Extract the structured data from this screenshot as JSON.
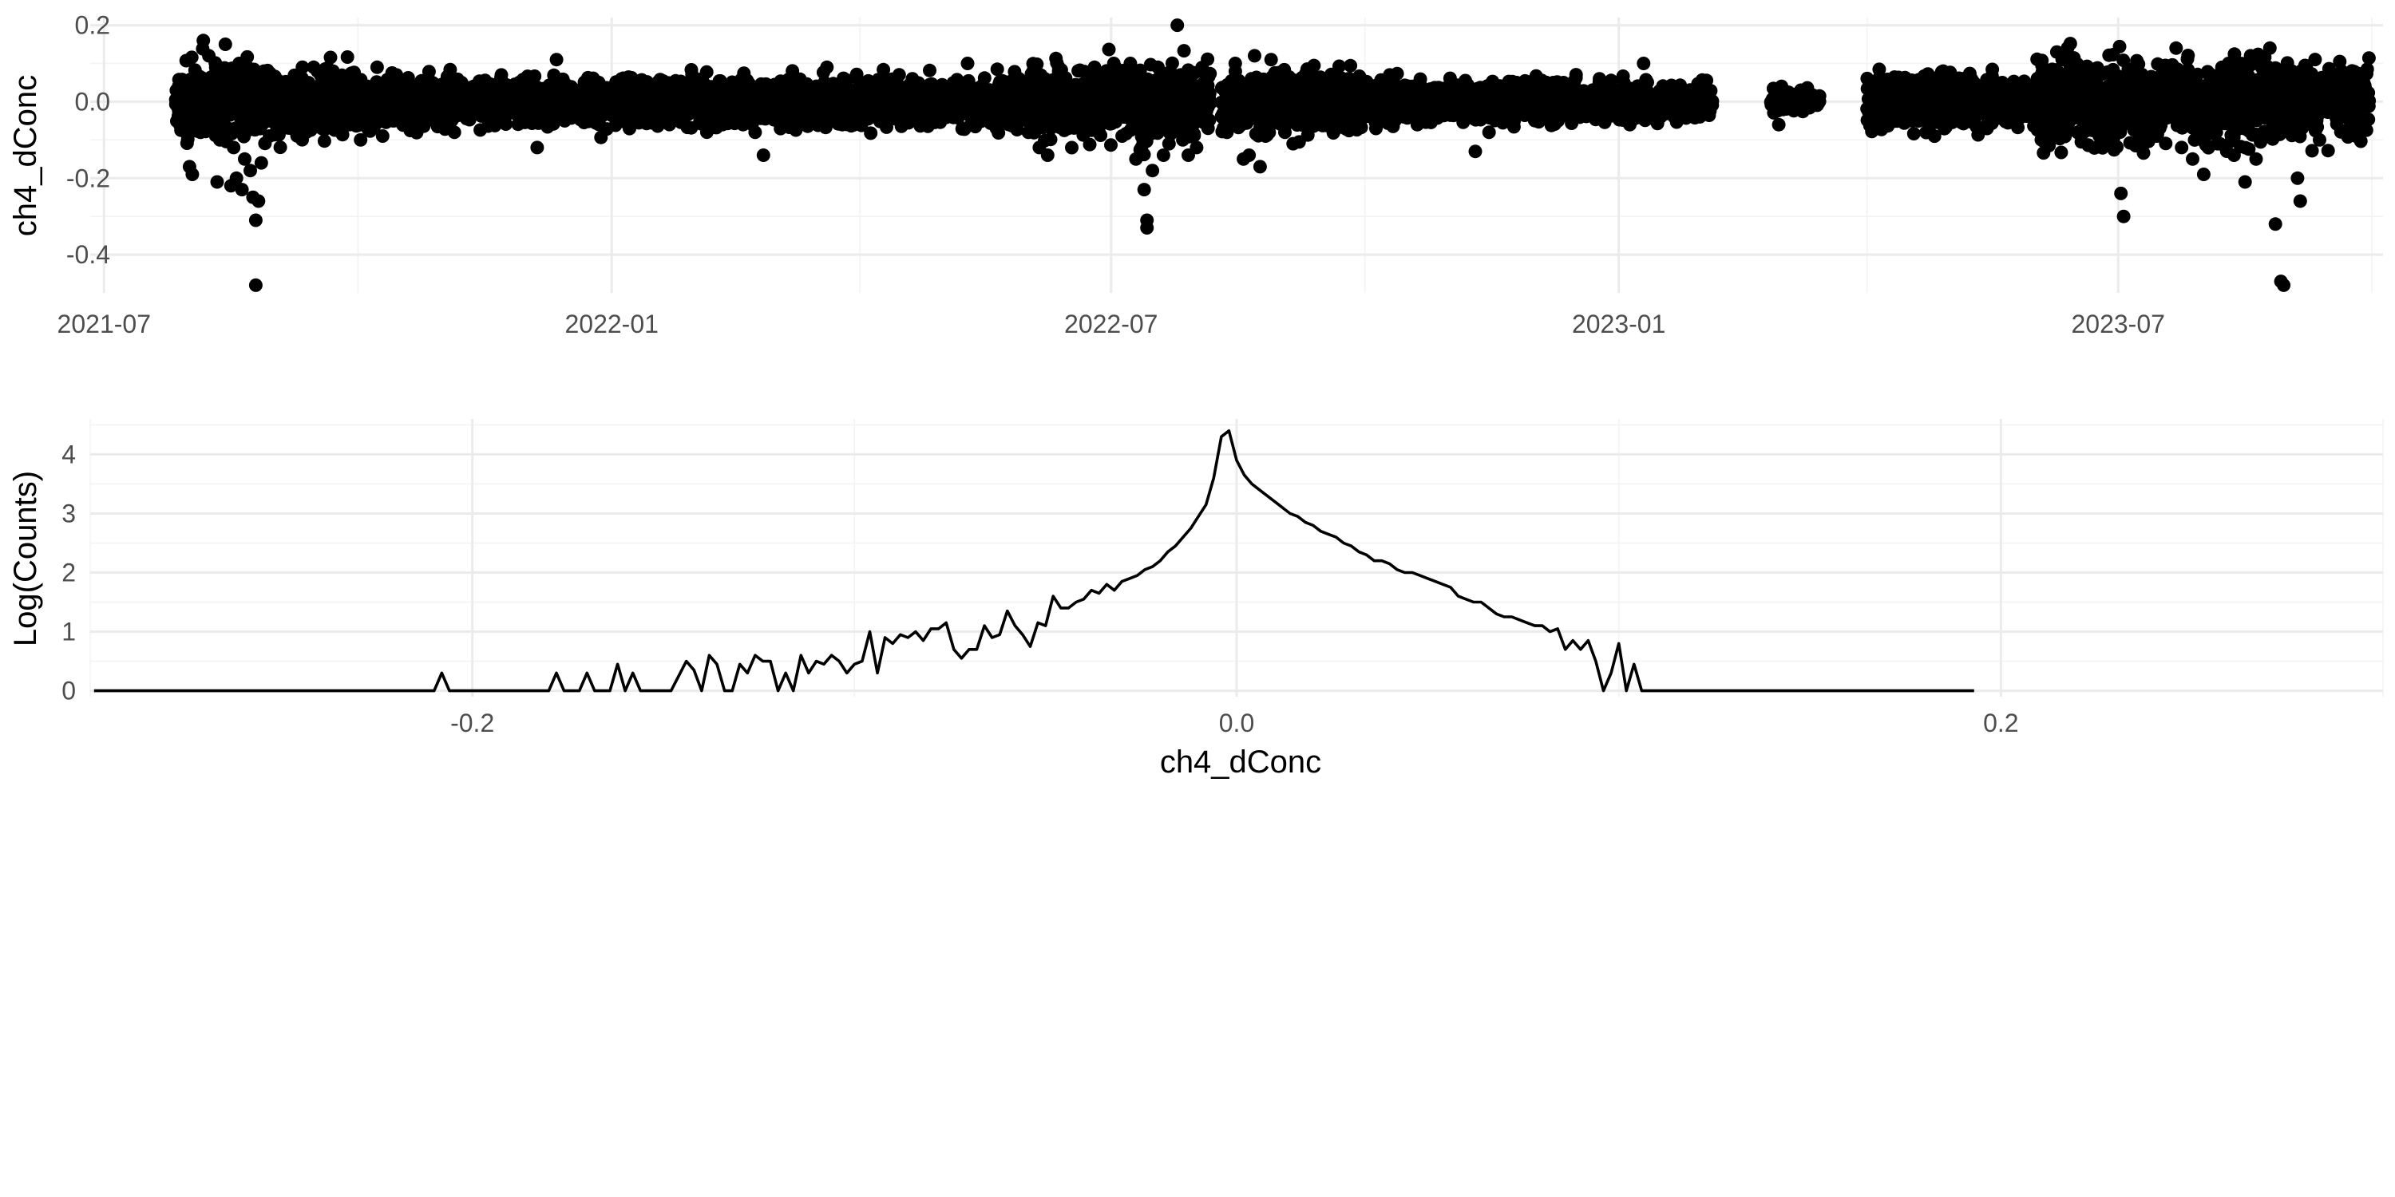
{
  "colors": {
    "marks": "#000000",
    "grid_major": "#ebebeb",
    "grid_minor": "#f3f3f3",
    "tick_text": "#4d4d4d"
  },
  "chart_data": [
    {
      "type": "scatter",
      "xlabel": "",
      "ylabel": "ch4_dConc",
      "x_type": "date",
      "xlim": [
        "2021-06-26",
        "2023-10-05"
      ],
      "ylim": [
        -0.5,
        0.22
      ],
      "x_ticks": [
        {
          "value": "2021-07-01",
          "label": "2021-07"
        },
        {
          "value": "2022-01-01",
          "label": "2022-01"
        },
        {
          "value": "2022-07-01",
          "label": "2022-07"
        },
        {
          "value": "2023-01-01",
          "label": "2023-01"
        },
        {
          "value": "2023-07-01",
          "label": "2023-07"
        }
      ],
      "y_ticks": [
        {
          "value": 0.2,
          "label": "0.2"
        },
        {
          "value": 0.0,
          "label": "0.0"
        },
        {
          "value": -0.2,
          "label": "-0.2"
        },
        {
          "value": -0.4,
          "label": "-0.4"
        }
      ],
      "grid": true,
      "activity_periods": [
        {
          "start": "2021-07-27",
          "end": "2022-08-06",
          "spread": 0.03
        },
        {
          "start": "2022-08-10",
          "end": "2023-02-04",
          "spread": 0.025
        },
        {
          "start": "2023-02-25",
          "end": "2023-03-15",
          "spread": 0.012
        },
        {
          "start": "2023-04-01",
          "end": "2023-09-30",
          "spread": 0.035
        }
      ],
      "points": [
        {
          "x": "2021-07-28",
          "y": 0.02
        },
        {
          "x": "2021-07-29",
          "y": -0.04
        },
        {
          "x": "2021-07-30",
          "y": 0.05
        },
        {
          "x": "2021-08-01",
          "y": -0.17
        },
        {
          "x": "2021-08-02",
          "y": -0.19
        },
        {
          "x": "2021-08-03",
          "y": 0.06
        },
        {
          "x": "2021-08-05",
          "y": -0.08
        },
        {
          "x": "2021-08-06",
          "y": 0.16
        },
        {
          "x": "2021-08-08",
          "y": 0.12
        },
        {
          "x": "2021-08-10",
          "y": 0.07
        },
        {
          "x": "2021-08-11",
          "y": -0.21
        },
        {
          "x": "2021-08-12",
          "y": -0.1
        },
        {
          "x": "2021-08-14",
          "y": 0.15
        },
        {
          "x": "2021-08-15",
          "y": -0.07
        },
        {
          "x": "2021-08-16",
          "y": -0.22
        },
        {
          "x": "2021-08-17",
          "y": -0.12
        },
        {
          "x": "2021-08-18",
          "y": -0.2
        },
        {
          "x": "2021-08-19",
          "y": 0.1
        },
        {
          "x": "2021-08-20",
          "y": -0.23
        },
        {
          "x": "2021-08-21",
          "y": -0.15
        },
        {
          "x": "2021-08-22",
          "y": 0.09
        },
        {
          "x": "2021-08-23",
          "y": -0.18
        },
        {
          "x": "2021-08-24",
          "y": -0.25
        },
        {
          "x": "2021-08-25",
          "y": -0.31
        },
        {
          "x": "2021-08-25",
          "y": -0.48
        },
        {
          "x": "2021-08-26",
          "y": -0.26
        },
        {
          "x": "2021-08-27",
          "y": -0.16
        },
        {
          "x": "2021-08-28",
          "y": 0.08
        },
        {
          "x": "2021-08-30",
          "y": -0.09
        },
        {
          "x": "2021-09-02",
          "y": 0.05
        },
        {
          "x": "2021-09-05",
          "y": -0.06
        },
        {
          "x": "2021-09-08",
          "y": 0.04
        },
        {
          "x": "2021-09-12",
          "y": -0.05
        },
        {
          "x": "2021-09-15",
          "y": 0.09
        },
        {
          "x": "2021-09-18",
          "y": -0.07
        },
        {
          "x": "2021-09-22",
          "y": 0.08
        },
        {
          "x": "2021-09-28",
          "y": -0.06
        },
        {
          "x": "2021-10-02",
          "y": -0.1
        },
        {
          "x": "2021-10-08",
          "y": 0.09
        },
        {
          "x": "2021-10-10",
          "y": -0.09
        },
        {
          "x": "2021-10-15",
          "y": 0.07
        },
        {
          "x": "2021-10-22",
          "y": -0.07
        },
        {
          "x": "2021-10-28",
          "y": 0.05
        },
        {
          "x": "2021-11-05",
          "y": -0.08
        },
        {
          "x": "2021-11-12",
          "y": 0.04
        },
        {
          "x": "2021-11-18",
          "y": -0.06
        },
        {
          "x": "2021-11-22",
          "y": 0.07
        },
        {
          "x": "2021-12-05",
          "y": -0.12
        },
        {
          "x": "2021-12-12",
          "y": 0.11
        },
        {
          "x": "2021-12-15",
          "y": -0.05
        },
        {
          "x": "2022-01-10",
          "y": 0.03
        },
        {
          "x": "2022-02-10",
          "y": 0.04
        },
        {
          "x": "2022-02-22",
          "y": -0.08
        },
        {
          "x": "2022-02-25",
          "y": -0.14
        },
        {
          "x": "2022-03-05",
          "y": 0.05
        },
        {
          "x": "2022-03-20",
          "y": 0.09
        },
        {
          "x": "2022-04-05",
          "y": -0.04
        },
        {
          "x": "2022-04-20",
          "y": 0.06
        },
        {
          "x": "2022-05-10",
          "y": 0.1
        },
        {
          "x": "2022-05-25",
          "y": -0.06
        },
        {
          "x": "2022-06-01",
          "y": -0.08
        },
        {
          "x": "2022-06-05",
          "y": -0.12
        },
        {
          "x": "2022-06-08",
          "y": -0.14
        },
        {
          "x": "2022-06-12",
          "y": 0.08
        },
        {
          "x": "2022-06-18",
          "y": -0.05
        },
        {
          "x": "2022-06-25",
          "y": 0.09
        },
        {
          "x": "2022-07-02",
          "y": 0.1
        },
        {
          "x": "2022-07-05",
          "y": -0.09
        },
        {
          "x": "2022-07-08",
          "y": 0.1
        },
        {
          "x": "2022-07-10",
          "y": -0.15
        },
        {
          "x": "2022-07-12",
          "y": -0.12
        },
        {
          "x": "2022-07-13",
          "y": -0.23
        },
        {
          "x": "2022-07-14",
          "y": -0.31
        },
        {
          "x": "2022-07-14",
          "y": -0.33
        },
        {
          "x": "2022-07-16",
          "y": -0.18
        },
        {
          "x": "2022-07-18",
          "y": 0.09
        },
        {
          "x": "2022-07-20",
          "y": -0.14
        },
        {
          "x": "2022-07-22",
          "y": -0.11
        },
        {
          "x": "2022-07-25",
          "y": 0.2
        },
        {
          "x": "2022-07-27",
          "y": -0.1
        },
        {
          "x": "2022-07-29",
          "y": -0.14
        },
        {
          "x": "2022-08-01",
          "y": -0.12
        },
        {
          "x": "2022-08-03",
          "y": 0.08
        },
        {
          "x": "2022-08-12",
          "y": -0.08
        },
        {
          "x": "2022-08-15",
          "y": 0.1
        },
        {
          "x": "2022-08-18",
          "y": -0.15
        },
        {
          "x": "2022-08-20",
          "y": -0.14
        },
        {
          "x": "2022-08-22",
          "y": 0.12
        },
        {
          "x": "2022-08-24",
          "y": -0.17
        },
        {
          "x": "2022-08-26",
          "y": -0.09
        },
        {
          "x": "2022-08-28",
          "y": 0.11
        },
        {
          "x": "2022-09-02",
          "y": -0.08
        },
        {
          "x": "2022-09-05",
          "y": -0.11
        },
        {
          "x": "2022-09-10",
          "y": 0.08
        },
        {
          "x": "2022-09-18",
          "y": -0.06
        },
        {
          "x": "2022-09-25",
          "y": 0.06
        },
        {
          "x": "2022-10-05",
          "y": -0.07
        },
        {
          "x": "2022-10-10",
          "y": 0.07
        },
        {
          "x": "2022-10-20",
          "y": -0.06
        },
        {
          "x": "2022-11-01",
          "y": 0.05
        },
        {
          "x": "2022-11-10",
          "y": -0.13
        },
        {
          "x": "2022-11-15",
          "y": -0.08
        },
        {
          "x": "2022-11-25",
          "y": 0.05
        },
        {
          "x": "2022-12-10",
          "y": -0.05
        },
        {
          "x": "2022-12-25",
          "y": 0.06
        },
        {
          "x": "2023-01-05",
          "y": -0.06
        },
        {
          "x": "2023-01-10",
          "y": 0.1
        },
        {
          "x": "2023-01-22",
          "y": 0.02
        },
        {
          "x": "2023-02-28",
          "y": -0.06
        },
        {
          "x": "2023-03-01",
          "y": 0.04
        },
        {
          "x": "2023-03-08",
          "y": 0.03
        },
        {
          "x": "2023-04-10",
          "y": 0.02
        },
        {
          "x": "2023-04-22",
          "y": 0.05
        },
        {
          "x": "2023-05-05",
          "y": -0.03
        },
        {
          "x": "2023-05-20",
          "y": 0.05
        },
        {
          "x": "2023-06-05",
          "y": -0.05
        },
        {
          "x": "2023-06-15",
          "y": 0.09
        },
        {
          "x": "2023-06-20",
          "y": -0.07
        },
        {
          "x": "2023-07-02",
          "y": -0.24
        },
        {
          "x": "2023-07-03",
          "y": -0.3
        },
        {
          "x": "2023-07-08",
          "y": 0.08
        },
        {
          "x": "2023-07-15",
          "y": -0.09
        },
        {
          "x": "2023-07-22",
          "y": 0.14
        },
        {
          "x": "2023-07-24",
          "y": -0.12
        },
        {
          "x": "2023-07-28",
          "y": -0.15
        },
        {
          "x": "2023-08-01",
          "y": -0.19
        },
        {
          "x": "2023-08-03",
          "y": 0.07
        },
        {
          "x": "2023-08-06",
          "y": -0.11
        },
        {
          "x": "2023-08-10",
          "y": 0.1
        },
        {
          "x": "2023-08-12",
          "y": -0.14
        },
        {
          "x": "2023-08-16",
          "y": -0.21
        },
        {
          "x": "2023-08-18",
          "y": 0.12
        },
        {
          "x": "2023-08-20",
          "y": -0.15
        },
        {
          "x": "2023-08-22",
          "y": 0.09
        },
        {
          "x": "2023-08-25",
          "y": 0.14
        },
        {
          "x": "2023-08-27",
          "y": -0.32
        },
        {
          "x": "2023-08-29",
          "y": -0.47
        },
        {
          "x": "2023-08-30",
          "y": -0.48
        },
        {
          "x": "2023-09-02",
          "y": 0.08
        },
        {
          "x": "2023-09-04",
          "y": -0.2
        },
        {
          "x": "2023-09-05",
          "y": -0.26
        },
        {
          "x": "2023-09-08",
          "y": 0.06
        },
        {
          "x": "2023-09-12",
          "y": -0.1
        },
        {
          "x": "2023-09-20",
          "y": 0.08
        },
        {
          "x": "2023-09-25",
          "y": -0.08
        },
        {
          "x": "2023-09-28",
          "y": 0.05
        }
      ]
    },
    {
      "type": "line",
      "xlabel": "ch4_dConc",
      "ylabel": "Log(Counts)",
      "xlim": [
        -0.3,
        0.3
      ],
      "ylim": [
        -0.1,
        4.6
      ],
      "x_ticks": [
        {
          "value": -0.2,
          "label": "-0.2"
        },
        {
          "value": 0.0,
          "label": "0.0"
        },
        {
          "value": 0.2,
          "label": "0.2"
        }
      ],
      "y_ticks": [
        {
          "value": 0,
          "label": "0"
        },
        {
          "value": 1,
          "label": "1"
        },
        {
          "value": 2,
          "label": "2"
        },
        {
          "value": 3,
          "label": "3"
        },
        {
          "value": 4,
          "label": "4"
        }
      ],
      "grid": true,
      "x": [
        -0.299,
        -0.21,
        -0.208,
        -0.206,
        -0.18,
        -0.178,
        -0.176,
        -0.172,
        -0.17,
        -0.168,
        -0.164,
        -0.162,
        -0.16,
        -0.158,
        -0.156,
        -0.154,
        -0.152,
        -0.15,
        -0.148,
        -0.144,
        -0.142,
        -0.14,
        -0.138,
        -0.136,
        -0.134,
        -0.132,
        -0.13,
        -0.128,
        -0.126,
        -0.124,
        -0.122,
        -0.12,
        -0.118,
        -0.116,
        -0.114,
        -0.112,
        -0.11,
        -0.108,
        -0.106,
        -0.104,
        -0.102,
        -0.1,
        -0.098,
        -0.096,
        -0.094,
        -0.092,
        -0.09,
        -0.088,
        -0.086,
        -0.084,
        -0.082,
        -0.08,
        -0.078,
        -0.076,
        -0.074,
        -0.072,
        -0.07,
        -0.068,
        -0.066,
        -0.064,
        -0.062,
        -0.06,
        -0.058,
        -0.056,
        -0.054,
        -0.052,
        -0.05,
        -0.048,
        -0.046,
        -0.044,
        -0.042,
        -0.04,
        -0.038,
        -0.036,
        -0.034,
        -0.032,
        -0.03,
        -0.028,
        -0.026,
        -0.024,
        -0.022,
        -0.02,
        -0.018,
        -0.016,
        -0.014,
        -0.012,
        -0.01,
        -0.008,
        -0.006,
        -0.004,
        -0.002,
        0.0,
        0.002,
        0.004,
        0.006,
        0.008,
        0.01,
        0.012,
        0.014,
        0.016,
        0.018,
        0.02,
        0.022,
        0.024,
        0.026,
        0.028,
        0.03,
        0.032,
        0.034,
        0.036,
        0.038,
        0.04,
        0.042,
        0.044,
        0.046,
        0.048,
        0.05,
        0.052,
        0.054,
        0.056,
        0.058,
        0.06,
        0.062,
        0.064,
        0.066,
        0.068,
        0.07,
        0.072,
        0.074,
        0.076,
        0.078,
        0.08,
        0.082,
        0.084,
        0.086,
        0.088,
        0.09,
        0.092,
        0.094,
        0.096,
        0.098,
        0.1,
        0.102,
        0.104,
        0.106,
        0.108,
        0.11,
        0.193
      ],
      "y": [
        0,
        0,
        0.3,
        0,
        0,
        0.3,
        0,
        0,
        0.3,
        0,
        0,
        0.45,
        0,
        0.3,
        0,
        0,
        0,
        0,
        0,
        0.5,
        0.35,
        0,
        0.6,
        0.45,
        0,
        0,
        0.45,
        0.3,
        0.6,
        0.5,
        0.5,
        0,
        0.3,
        0,
        0.6,
        0.3,
        0.5,
        0.45,
        0.6,
        0.5,
        0.3,
        0.45,
        0.5,
        1.0,
        0.3,
        0.9,
        0.8,
        0.95,
        0.9,
        1.0,
        0.85,
        1.05,
        1.05,
        1.15,
        0.7,
        0.55,
        0.7,
        0.7,
        1.1,
        0.9,
        0.95,
        1.35,
        1.1,
        0.95,
        0.75,
        1.15,
        1.1,
        1.6,
        1.4,
        1.4,
        1.5,
        1.55,
        1.7,
        1.65,
        1.8,
        1.7,
        1.85,
        1.9,
        1.95,
        2.05,
        2.1,
        2.2,
        2.35,
        2.45,
        2.6,
        2.75,
        2.95,
        3.15,
        3.6,
        4.3,
        4.4,
        3.9,
        3.65,
        3.5,
        3.4,
        3.3,
        3.2,
        3.1,
        3.0,
        2.95,
        2.85,
        2.8,
        2.7,
        2.65,
        2.6,
        2.5,
        2.45,
        2.35,
        2.3,
        2.2,
        2.2,
        2.15,
        2.05,
        2.0,
        2.0,
        1.95,
        1.9,
        1.85,
        1.8,
        1.75,
        1.6,
        1.55,
        1.5,
        1.5,
        1.4,
        1.3,
        1.25,
        1.25,
        1.2,
        1.15,
        1.1,
        1.1,
        1.0,
        1.05,
        0.7,
        0.85,
        0.7,
        0.85,
        0.5,
        0.0,
        0.3,
        0.8,
        0.0,
        0.45,
        0.0,
        0.0,
        0.0,
        0.0
      ]
    }
  ]
}
